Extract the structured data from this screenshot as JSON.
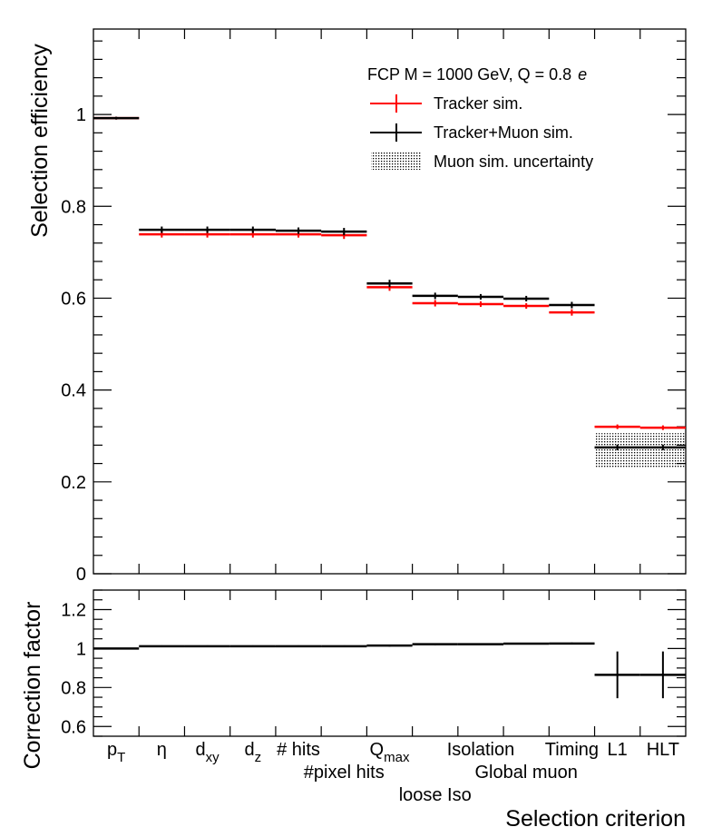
{
  "chart_data": [
    {
      "type": "line",
      "panel": "efficiency",
      "ylabel": "Selection efficiency",
      "ylim": [
        0,
        1.186
      ],
      "yticks": [
        "0",
        "0.2",
        "0.4",
        "0.6",
        "0.8",
        "1"
      ],
      "categories": [
        "pT",
        "η",
        "dxy",
        "dz",
        "# hits",
        "#pixel hits",
        "Qmax",
        "loose Iso",
        "Isolation",
        "Global muon",
        "Timing",
        "L1",
        "HLT"
      ],
      "legend": {
        "header": "FCP M = 1000 GeV, Q = 0.8",
        "header_unit": "e",
        "placement": "top-right"
      },
      "series": [
        {
          "name": "Tracker sim.",
          "color": "#ff0000",
          "values": [
            0.992,
            0.739,
            0.739,
            0.739,
            0.739,
            0.737,
            0.624,
            0.589,
            0.587,
            0.583,
            0.569,
            0.32,
            0.318
          ],
          "errors": [
            0.003,
            0.007,
            0.007,
            0.007,
            0.007,
            0.008,
            0.008,
            0.007,
            0.006,
            0.006,
            0.007,
            0.005,
            0.005
          ]
        },
        {
          "name": "Tracker+Muon sim.",
          "color": "#000000",
          "values": [
            0.992,
            0.749,
            0.749,
            0.749,
            0.747,
            0.745,
            0.632,
            0.605,
            0.603,
            0.599,
            0.585,
            0.275,
            0.275
          ],
          "errors": [
            0.003,
            0.007,
            0.007,
            0.007,
            0.007,
            0.008,
            0.008,
            0.007,
            0.006,
            0.006,
            0.007,
            0.006,
            0.006
          ]
        }
      ],
      "band": {
        "name": "Muon sim. uncertainty",
        "bins": [
          11,
          12
        ],
        "low": [
          0.231,
          0.231
        ],
        "high": [
          0.306,
          0.306
        ]
      }
    },
    {
      "type": "line",
      "panel": "ratio",
      "ylabel": "Correction factor",
      "xlabel": "Selection criterion",
      "ylim": [
        0.55,
        1.3
      ],
      "yticks": [
        "0.6",
        "0.8",
        "1",
        "1.2"
      ],
      "values": [
        1.0,
        1.012,
        1.012,
        1.012,
        1.012,
        1.012,
        1.015,
        1.022,
        1.022,
        1.025,
        1.026,
        0.865,
        0.865
      ],
      "errors": [
        0.0,
        0.004,
        0.004,
        0.004,
        0.004,
        0.004,
        0.005,
        0.005,
        0.004,
        0.004,
        0.005,
        0.12,
        0.12
      ],
      "color": "#000000"
    }
  ],
  "xlabels": [
    {
      "main": "p",
      "sub": "T"
    },
    {
      "main": "η",
      "sub": ""
    },
    {
      "main": "d",
      "sub": "xy"
    },
    {
      "main": "d",
      "sub": "z"
    },
    {
      "main": "# hits",
      "sub": ""
    },
    {
      "main": "#pixel hits",
      "sub": ""
    },
    {
      "main": "Q",
      "sub": "max"
    },
    {
      "main": "loose Iso",
      "sub": ""
    },
    {
      "main": "Isolation",
      "sub": ""
    },
    {
      "main": "Global muon",
      "sub": ""
    },
    {
      "main": "Timing",
      "sub": ""
    },
    {
      "main": "L1",
      "sub": ""
    },
    {
      "main": "HLT",
      "sub": ""
    }
  ]
}
